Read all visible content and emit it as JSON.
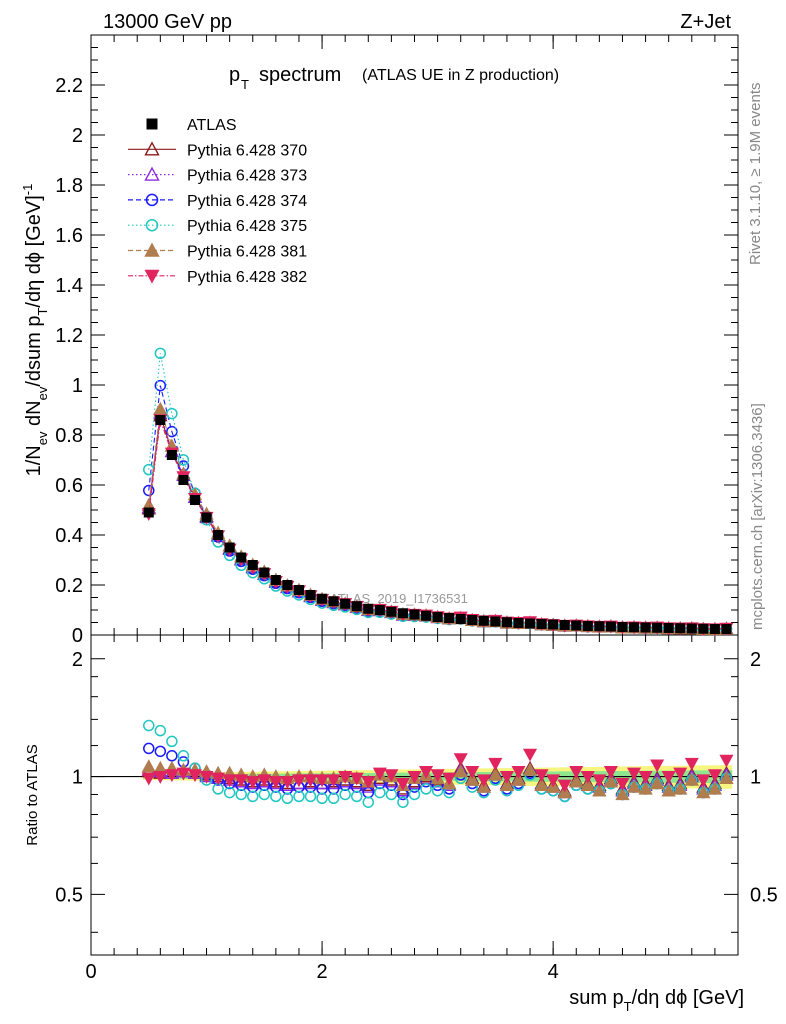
{
  "header": {
    "left": "13000 GeV pp",
    "right": "Z+Jet"
  },
  "side_text": {
    "rivet": "Rivet 3.1.10, ≥ 1.9M events",
    "mcplots": "mcplots.cern.ch [arXiv:1306.3436]"
  },
  "chart_data": {
    "type": "scatter",
    "title_main": "p",
    "title_sub": "T",
    "title_word": "spectrum",
    "title_note": "(ATLAS UE in Z production)",
    "watermark": "ATLAS_2019_I1736531",
    "ylabel_parts": [
      "1/N",
      "ev",
      " dN",
      "ev",
      "/dsum p",
      "T",
      "/dη dϕ  [GeV]",
      "-1"
    ],
    "xlabel_parts": [
      "sum p",
      "T",
      "/dη dϕ [GeV]"
    ],
    "ratio_ylabel": "Ratio to ATLAS",
    "xlim": [
      0,
      5.6
    ],
    "ylim": [
      0,
      2.4
    ],
    "ratio_ylim": [
      0.35,
      2.3
    ],
    "x_ticks": [
      "0",
      "2",
      "4"
    ],
    "y_ticks": [
      "0",
      "0.2",
      "0.4",
      "0.6",
      "0.8",
      "1",
      "1.2",
      "1.4",
      "1.6",
      "1.8",
      "2",
      "2.2"
    ],
    "ratio_ticks_left": [
      "0.5",
      "1",
      "2"
    ],
    "ratio_ticks_right": [
      "0.5",
      "1",
      "2"
    ],
    "x": [
      0.5,
      0.6,
      0.7,
      0.8,
      0.9,
      1.0,
      1.1,
      1.2,
      1.3,
      1.4,
      1.5,
      1.6,
      1.7,
      1.8,
      1.9,
      2.0,
      2.1,
      2.2,
      2.3,
      2.4,
      2.5,
      2.6,
      2.7,
      2.8,
      2.9,
      3.0,
      3.1,
      3.2,
      3.3,
      3.4,
      3.5,
      3.6,
      3.7,
      3.8,
      3.9,
      4.0,
      4.1,
      4.2,
      4.3,
      4.4,
      4.5,
      4.6,
      4.7,
      4.8,
      4.9,
      5.0,
      5.1,
      5.2,
      5.3,
      5.4,
      5.5
    ],
    "atlas_values": [
      0.49,
      0.86,
      0.72,
      0.62,
      0.54,
      0.47,
      0.4,
      0.35,
      0.31,
      0.28,
      0.25,
      0.22,
      0.2,
      0.18,
      0.16,
      0.145,
      0.135,
      0.125,
      0.115,
      0.105,
      0.1,
      0.093,
      0.087,
      0.082,
      0.077,
      0.072,
      0.068,
      0.064,
      0.06,
      0.057,
      0.054,
      0.051,
      0.048,
      0.046,
      0.044,
      0.042,
      0.04,
      0.038,
      0.036,
      0.035,
      0.034,
      0.032,
      0.031,
      0.03,
      0.029,
      0.028,
      0.027,
      0.026,
      0.025,
      0.024,
      0.024
    ],
    "legend": [
      {
        "label": "ATLAS",
        "marker": "square-filled",
        "line": "none",
        "color": "#000000"
      },
      {
        "label": "Pythia 6.428 370",
        "marker": "triangle-up-open",
        "line": "solid",
        "color": "#8b1a1a"
      },
      {
        "label": "Pythia 6.428 373",
        "marker": "triangle-up-open",
        "line": "dotted",
        "color": "#8a2be2"
      },
      {
        "label": "Pythia 6.428 374",
        "marker": "circle-open",
        "line": "dashed",
        "color": "#1a1aff"
      },
      {
        "label": "Pythia 6.428 375",
        "marker": "circle-open",
        "line": "dotted",
        "color": "#20c7c0"
      },
      {
        "label": "Pythia 6.428 381",
        "marker": "triangle-up-filled",
        "line": "dashed",
        "color": "#b07d4f"
      },
      {
        "label": "Pythia 6.428 382",
        "marker": "triangle-down-filled",
        "line": "dashdot",
        "color": "#e0245e"
      }
    ],
    "ratio_series": [
      {
        "name": "Pythia 6.428 370",
        "values": [
          1.03,
          1.02,
          1.02,
          1.03,
          1.02,
          1.01,
          1.0,
          0.99,
          0.98,
          0.97,
          0.98,
          0.97,
          0.96,
          0.96,
          0.97,
          0.96,
          0.97,
          0.98,
          0.97,
          0.95,
          0.99,
          0.98,
          0.93,
          0.97,
          1.0,
          0.98,
          0.96,
          1.05,
          0.99,
          0.95,
          1.02,
          0.96,
          0.99,
          1.05,
          0.96,
          0.95,
          0.92,
          0.98,
          0.96,
          0.95,
          0.99,
          0.93,
          0.97,
          0.96,
          0.99,
          0.95,
          0.96,
          1.01,
          0.94,
          0.96,
          1.02
        ]
      },
      {
        "name": "Pythia 6.428 373",
        "values": [
          1.04,
          1.03,
          1.02,
          1.03,
          1.02,
          1.0,
          0.99,
          0.98,
          0.97,
          0.96,
          0.97,
          0.96,
          0.95,
          0.96,
          0.96,
          0.96,
          0.96,
          0.97,
          0.96,
          0.94,
          0.98,
          0.97,
          0.92,
          0.96,
          0.99,
          0.97,
          0.95,
          1.04,
          0.98,
          0.94,
          1.01,
          0.95,
          0.98,
          1.04,
          0.95,
          0.94,
          0.91,
          0.97,
          0.95,
          0.94,
          0.98,
          0.92,
          0.96,
          0.95,
          0.98,
          0.94,
          0.95,
          1.0,
          0.93,
          0.95,
          1.01
        ]
      },
      {
        "name": "Pythia 6.428 374",
        "values": [
          1.18,
          1.16,
          1.13,
          1.09,
          1.05,
          1.01,
          0.98,
          0.96,
          0.95,
          0.94,
          0.95,
          0.94,
          0.93,
          0.94,
          0.94,
          0.93,
          0.93,
          0.95,
          0.94,
          0.91,
          0.96,
          0.95,
          0.9,
          0.94,
          0.97,
          0.95,
          0.93,
          1.01,
          0.96,
          0.92,
          0.99,
          0.93,
          0.96,
          1.02,
          0.93,
          0.92,
          0.89,
          0.95,
          0.93,
          0.92,
          0.96,
          0.9,
          0.94,
          0.93,
          0.96,
          0.92,
          0.93,
          0.98,
          0.91,
          0.93,
          0.99
        ]
      },
      {
        "name": "Pythia 6.428 375",
        "values": [
          1.35,
          1.31,
          1.23,
          1.13,
          1.05,
          0.98,
          0.93,
          0.91,
          0.9,
          0.89,
          0.9,
          0.89,
          0.88,
          0.89,
          0.89,
          0.88,
          0.88,
          0.9,
          0.89,
          0.86,
          0.91,
          0.9,
          0.86,
          0.9,
          0.93,
          0.92,
          0.91,
          0.99,
          0.94,
          0.91,
          0.98,
          0.92,
          0.95,
          1.01,
          0.93,
          0.92,
          0.89,
          0.95,
          0.93,
          0.92,
          0.96,
          0.9,
          0.94,
          0.93,
          0.96,
          0.92,
          0.93,
          0.98,
          0.91,
          0.93,
          0.99
        ]
      },
      {
        "name": "Pythia 6.428 381",
        "values": [
          1.06,
          1.05,
          1.05,
          1.04,
          1.04,
          1.03,
          1.02,
          1.02,
          1.01,
          1.0,
          1.01,
          1.0,
          0.99,
          1.0,
          1.0,
          0.99,
          0.99,
          1.0,
          0.99,
          0.97,
          1.01,
          1.0,
          0.95,
          0.99,
          1.01,
          0.99,
          0.96,
          1.03,
          0.98,
          0.94,
          1.01,
          0.95,
          0.98,
          1.04,
          0.95,
          0.94,
          0.91,
          0.97,
          0.95,
          0.92,
          0.97,
          0.9,
          0.94,
          0.93,
          0.96,
          0.92,
          0.93,
          0.98,
          0.91,
          0.93,
          0.99
        ]
      },
      {
        "name": "Pythia 6.428 382",
        "values": [
          0.99,
          1.0,
          1.01,
          1.02,
          1.01,
          1.0,
          0.99,
          0.98,
          0.98,
          0.97,
          0.98,
          0.97,
          0.97,
          0.98,
          0.98,
          0.98,
          0.98,
          1.0,
          0.99,
          0.97,
          1.02,
          1.01,
          0.96,
          1.0,
          1.03,
          1.01,
          0.99,
          1.11,
          1.03,
          0.98,
          1.08,
          1.0,
          1.03,
          1.14,
          1.01,
          0.98,
          0.95,
          1.03,
          1.0,
          0.98,
          1.03,
          0.96,
          1.02,
          1.0,
          1.07,
          1.0,
          1.02,
          1.08,
          0.98,
          1.01,
          1.1
        ]
      }
    ]
  }
}
